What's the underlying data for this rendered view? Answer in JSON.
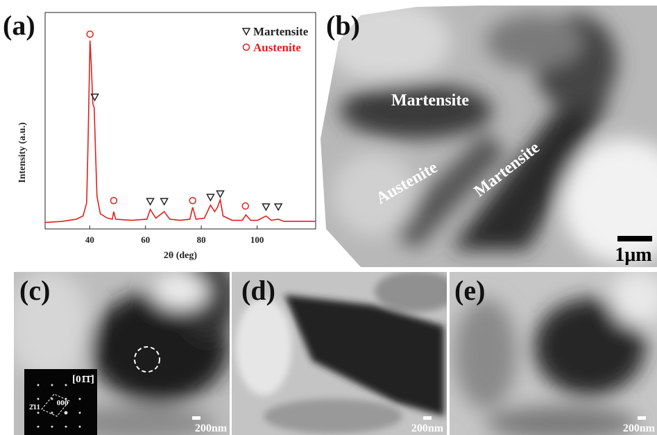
{
  "chart_data": {
    "type": "line",
    "xlabel": "2θ (deg)",
    "ylabel": "Intensity (a.u.)",
    "x": [
      24,
      30.2,
      35.2,
      37.6,
      38.9,
      39.4,
      40.1,
      40.6,
      41.1,
      41.6,
      42.1,
      42.6,
      43.8,
      46.3,
      48.1,
      48.6,
      49.3,
      55,
      60.5,
      61.7,
      63.7,
      66.7,
      68.7,
      72.4,
      75.9,
      76.9,
      78.1,
      81.1,
      83.3,
      84.8,
      85.8,
      86.8,
      87.8,
      91,
      94.7,
      96,
      97.7,
      100.2,
      103.2,
      105.1,
      107.6,
      109.6,
      114.6,
      120.8
    ],
    "values": [
      3,
      3.5,
      4.5,
      6,
      12,
      40,
      87,
      75,
      58,
      56,
      35,
      15,
      7,
      5,
      4.5,
      8,
      4.5,
      4,
      4.5,
      9,
      5,
      8,
      4.5,
      4,
      4.5,
      10,
      4.5,
      5,
      11,
      8,
      10,
      13.5,
      6,
      4,
      4,
      6.5,
      4,
      4,
      6,
      4,
      4.5,
      3.5,
      3.5,
      3.5
    ],
    "color": "#e0201b",
    "series": [
      {
        "name": "Martensite",
        "marker": "triangle",
        "color": "#222222",
        "x": [
          41.8,
          61.7,
          66.7,
          83.3,
          86.8,
          103.2,
          107.6
        ],
        "values": [
          61,
          12.8,
          12.8,
          14.7,
          16.3,
          10.3,
          10.3
        ]
      },
      {
        "name": "Austenite",
        "marker": "circle",
        "color": "#e0201b",
        "x": [
          40.1,
          48.6,
          76.9,
          95.8
        ],
        "values": [
          90,
          13.1,
          13.1,
          10.6
        ]
      }
    ],
    "xlim": [
      24,
      121
    ],
    "ylim": [
      0,
      100
    ],
    "xticks": [
      40,
      60,
      80,
      100
    ],
    "legend": "upper right"
  },
  "panels": {
    "a": {
      "label": "(a)"
    },
    "b": {
      "label": "(b)",
      "annotations": [
        "Martensite",
        "Austenite",
        "Martensite"
      ],
      "scale_bar": "1μm"
    },
    "c": {
      "label": "(c)",
      "scale_bar": "200nm",
      "inset": {
        "zone_axis": "[01̄1̄]",
        "spots": [
          "2̄11",
          "000"
        ]
      }
    },
    "d": {
      "label": "(d)",
      "scale_bar": "200nm"
    },
    "e": {
      "label": "(e)",
      "scale_bar": "200nm"
    }
  }
}
